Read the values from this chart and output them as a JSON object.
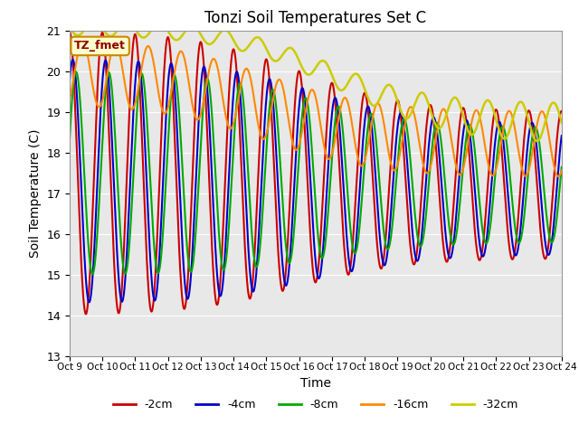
{
  "title": "Tonzi Soil Temperatures Set C",
  "xlabel": "Time",
  "ylabel": "Soil Temperature (C)",
  "xlim": [
    0,
    15
  ],
  "ylim": [
    13.0,
    21.0
  ],
  "yticks": [
    13.0,
    14.0,
    15.0,
    16.0,
    17.0,
    18.0,
    19.0,
    20.0,
    21.0
  ],
  "xtick_labels": [
    "Oct 9",
    "Oct 10",
    "Oct 11",
    "Oct 12",
    "Oct 13",
    "Oct 14",
    "Oct 15",
    "Oct 16",
    "Oct 17",
    "Oct 18",
    "Oct 19",
    "Oct 20",
    "Oct 21",
    "Oct 22",
    "Oct 23",
    "Oct 24"
  ],
  "legend_labels": [
    "-2cm",
    "-4cm",
    "-8cm",
    "-16cm",
    "-32cm"
  ],
  "legend_colors": [
    "#cc0000",
    "#0000cc",
    "#00aa00",
    "#ff8800",
    "#cccc00"
  ],
  "line_widths": [
    1.5,
    1.5,
    1.5,
    1.5,
    1.8
  ],
  "bg_color": "#e8e8e8",
  "annotation_text": "TZ_fmet",
  "annotation_bg": "#ffffcc",
  "annotation_border": "#cc8800"
}
